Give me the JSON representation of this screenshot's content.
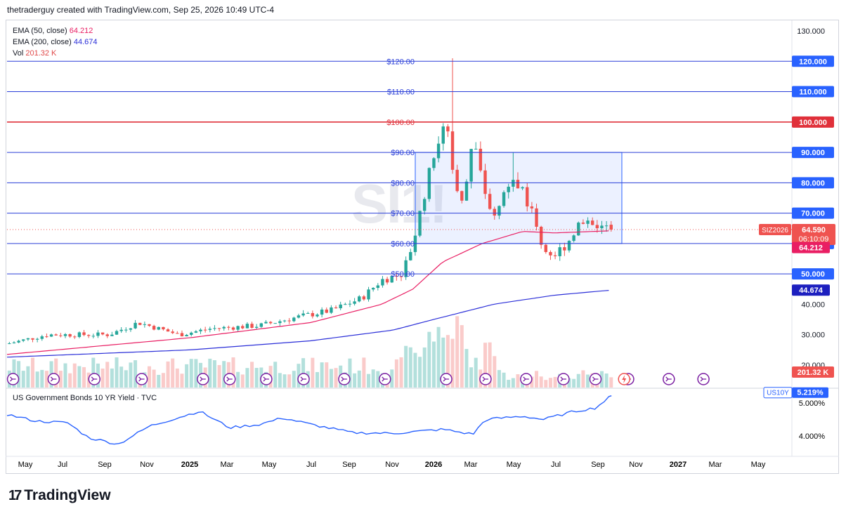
{
  "header": {
    "text": "thetraderguy created with TradingView.com, Sep 25, 2026 10:49 UTC-4"
  },
  "legend": {
    "ema50_label": "EMA (50, close)",
    "ema50_value": "64.212",
    "ema200_label": "EMA (200, close)",
    "ema200_value": "44.674",
    "vol_label": "Vol",
    "vol_value": "201.32 K"
  },
  "watermark": "SI1!",
  "brand": {
    "logo": "17",
    "name": "TradingView"
  },
  "colors": {
    "up": "#26a69a",
    "down": "#ef5350",
    "ema50": "#e91e63",
    "ema200": "#2a2ed8",
    "level": "#2a3fd8",
    "level_red": "#e0303a",
    "box": "#2962ff",
    "yield": "#2962ff"
  },
  "price_axis": {
    "ticks": [
      "130.000",
      "40.000",
      "30.000",
      "20.000"
    ]
  },
  "levels": [
    {
      "price": 120,
      "label": "$120.00",
      "badge": "120.000",
      "color": "blue"
    },
    {
      "price": 110,
      "label": "$110.00",
      "badge": "110.000",
      "color": "blue"
    },
    {
      "price": 100,
      "label": "$100.00",
      "badge": "100.000",
      "color": "red"
    },
    {
      "price": 90,
      "label": "$90.00",
      "badge": "90.000",
      "color": "blue"
    },
    {
      "price": 80,
      "label": "$80.00",
      "badge": "80.000",
      "color": "blue"
    },
    {
      "price": 70,
      "label": "$70.00",
      "badge": "70.000",
      "color": "blue"
    },
    {
      "price": 60,
      "label": "$60.00",
      "badge": "60.000",
      "color": "blue"
    },
    {
      "price": 50,
      "label": "$50.00",
      "badge": "50.000",
      "color": "blue"
    }
  ],
  "badges": {
    "symbol": "SIZ2026",
    "last_price": "64.590",
    "countdown": "06:10:09",
    "ema50": "64.212",
    "ema200": "44.674",
    "volume": "201.32 K",
    "yield_symbol": "US10Y",
    "yield_value": "5.219%"
  },
  "time_axis": {
    "labels": [
      "May",
      "Jul",
      "Sep",
      "Nov",
      "2025",
      "Mar",
      "May",
      "Jul",
      "Sep",
      "Nov",
      "2026",
      "Mar",
      "May",
      "Jul",
      "Sep",
      "Nov",
      "2027",
      "Mar",
      "May"
    ],
    "bold": [
      "2025",
      "2026",
      "2027"
    ]
  },
  "yield_pane": {
    "title": "US Government Bonds 10 YR Yield · TVC",
    "ticks": [
      "5.000%",
      "4.000%"
    ]
  },
  "chart_data": [
    {
      "type": "candlestick",
      "title": "SI1!",
      "timeframe": "weekly",
      "ylim": [
        16,
        134
      ],
      "x_range": [
        "2024-05",
        "2027-06"
      ],
      "highlight_box": {
        "from": "2025-12",
        "to": "2026-09",
        "low": 60,
        "high": 90
      },
      "price_anchors": [
        {
          "date": "2024-04-01",
          "close": 27
        },
        {
          "date": "2024-06-01",
          "close": 30
        },
        {
          "date": "2024-09-01",
          "close": 30
        },
        {
          "date": "2024-10-15",
          "close": 34
        },
        {
          "date": "2024-12-15",
          "close": 30
        },
        {
          "date": "2025-02-01",
          "close": 32
        },
        {
          "date": "2025-04-15",
          "close": 33
        },
        {
          "date": "2025-06-15",
          "close": 36
        },
        {
          "date": "2025-08-01",
          "close": 38
        },
        {
          "date": "2025-09-15",
          "close": 42
        },
        {
          "date": "2025-10-15",
          "close": 48
        },
        {
          "date": "2025-11-15",
          "close": 50
        },
        {
          "date": "2025-12-01",
          "close": 60
        },
        {
          "date": "2025-12-20",
          "close": 78
        },
        {
          "date": "2026-01-05",
          "close": 92
        },
        {
          "date": "2026-01-20",
          "close": 100
        },
        {
          "date": "2026-02-01",
          "close": 78
        },
        {
          "date": "2026-02-15",
          "close": 72
        },
        {
          "date": "2026-03-01",
          "close": 95
        },
        {
          "date": "2026-03-15",
          "close": 80
        },
        {
          "date": "2026-04-01",
          "close": 68
        },
        {
          "date": "2026-04-15",
          "close": 76
        },
        {
          "date": "2026-05-01",
          "close": 80
        },
        {
          "date": "2026-05-15",
          "close": 78
        },
        {
          "date": "2026-06-01",
          "close": 68
        },
        {
          "date": "2026-06-15",
          "close": 58
        },
        {
          "date": "2026-07-01",
          "close": 56
        },
        {
          "date": "2026-07-20",
          "close": 60
        },
        {
          "date": "2026-08-05",
          "close": 66
        },
        {
          "date": "2026-08-20",
          "close": 68
        },
        {
          "date": "2026-09-05",
          "close": 66
        },
        {
          "date": "2026-09-25",
          "close": 64.59
        }
      ],
      "last": {
        "open": 66.2,
        "high": 67.4,
        "low": 63.9,
        "close": 64.59
      },
      "spikes": [
        {
          "date": "2026-01-26",
          "high": 121
        },
        {
          "date": "2026-04-27",
          "high": 90
        }
      ],
      "ema50_anchors": [
        {
          "date": "2024-04-01",
          "value": 23.5
        },
        {
          "date": "2025-01-01",
          "value": 29
        },
        {
          "date": "2025-07-01",
          "value": 34
        },
        {
          "date": "2025-10-15",
          "value": 40
        },
        {
          "date": "2025-12-01",
          "value": 45
        },
        {
          "date": "2026-01-15",
          "value": 54
        },
        {
          "date": "2026-03-15",
          "value": 60
        },
        {
          "date": "2026-05-15",
          "value": 64
        },
        {
          "date": "2026-07-01",
          "value": 63.5
        },
        {
          "date": "2026-09-25",
          "value": 64.212
        }
      ],
      "ema200_anchors": [
        {
          "date": "2024-04-01",
          "value": 22.6
        },
        {
          "date": "2025-01-01",
          "value": 25
        },
        {
          "date": "2025-07-01",
          "value": 28
        },
        {
          "date": "2025-11-01",
          "value": 31.5
        },
        {
          "date": "2026-01-01",
          "value": 35
        },
        {
          "date": "2026-04-01",
          "value": 40
        },
        {
          "date": "2026-07-01",
          "value": 43
        },
        {
          "date": "2026-09-25",
          "value": 44.674
        }
      ],
      "volume": {
        "unit": "K",
        "last": 201.32
      }
    },
    {
      "type": "line",
      "title": "US Government Bonds 10 YR Yield · TVC",
      "ylim": [
        3.4,
        5.45
      ],
      "anchors": [
        {
          "date": "2024-04-01",
          "value": 4.65
        },
        {
          "date": "2024-05-15",
          "value": 4.45
        },
        {
          "date": "2024-07-01",
          "value": 4.4
        },
        {
          "date": "2024-08-01",
          "value": 3.95
        },
        {
          "date": "2024-09-15",
          "value": 3.75
        },
        {
          "date": "2024-11-01",
          "value": 4.3
        },
        {
          "date": "2025-01-15",
          "value": 4.75
        },
        {
          "date": "2025-03-01",
          "value": 4.25
        },
        {
          "date": "2025-04-15",
          "value": 4.35
        },
        {
          "date": "2025-05-20",
          "value": 4.55
        },
        {
          "date": "2025-07-01",
          "value": 4.35
        },
        {
          "date": "2025-09-01",
          "value": 4.1
        },
        {
          "date": "2025-11-01",
          "value": 4.08
        },
        {
          "date": "2026-01-15",
          "value": 4.2
        },
        {
          "date": "2026-03-01",
          "value": 4.05
        },
        {
          "date": "2026-03-20",
          "value": 4.5
        },
        {
          "date": "2026-05-15",
          "value": 4.6
        },
        {
          "date": "2026-06-15",
          "value": 4.5
        },
        {
          "date": "2026-08-01",
          "value": 4.75
        },
        {
          "date": "2026-09-01",
          "value": 4.85
        },
        {
          "date": "2026-09-25",
          "value": 5.219
        }
      ],
      "last": 5.219
    }
  ]
}
